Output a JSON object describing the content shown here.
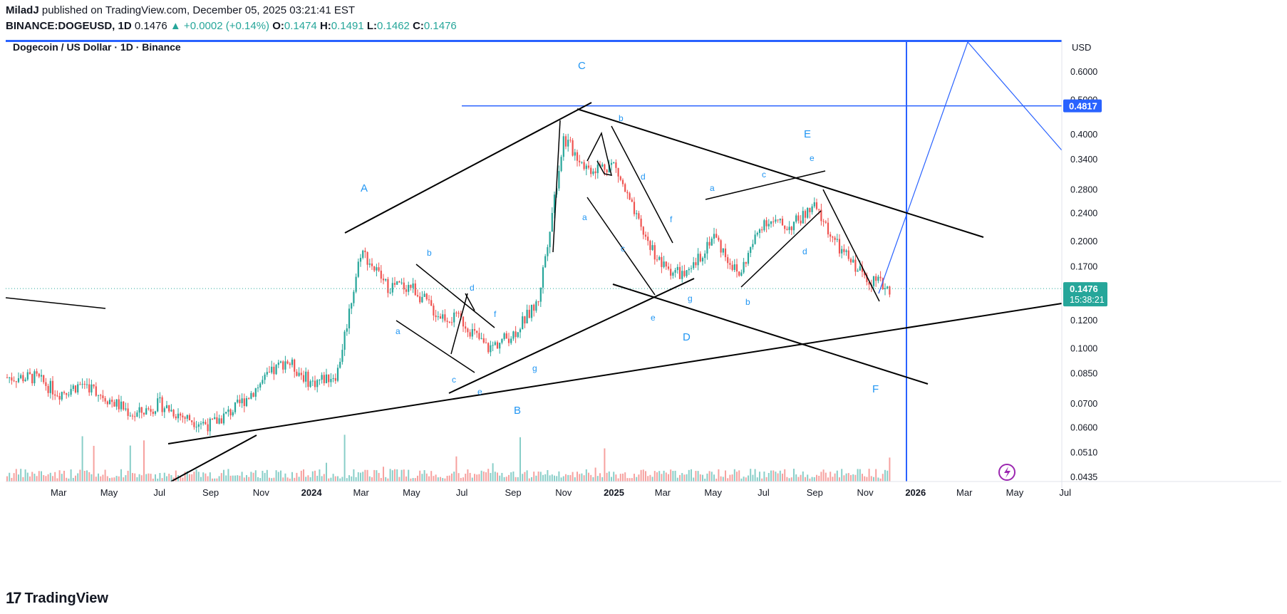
{
  "header": {
    "author": "MiladJ",
    "published_text": "published on TradingView.com, December 05, 2025 03:21:41 EST",
    "symbol": "BINANCE:DOGEUSD, 1D",
    "last": "0.1476",
    "change": "▲ +0.0002 (+0.14%)",
    "o_label": "O:",
    "o": "0.1474",
    "h_label": "H:",
    "h": "0.1491",
    "l_label": "L:",
    "l": "0.1462",
    "c_label": "C:",
    "c": "0.1476"
  },
  "legend": {
    "title": "Dogecoin / US Dollar · 1D · Binance"
  },
  "price_axis": {
    "currency": "USD",
    "ticks": [
      "0.6000",
      "0.5000",
      "0.4000",
      "0.3400",
      "0.2800",
      "0.2400",
      "0.2000",
      "0.1700",
      "0.1200",
      "0.1000",
      "0.0850",
      "0.0700",
      "0.0600",
      "0.0510",
      "0.0435"
    ],
    "tag_level": "0.4817",
    "tag_last": "0.1476",
    "tag_timer": "15:38:21"
  },
  "time_axis": {
    "ticks": [
      "Mar",
      "May",
      "Jul",
      "Sep",
      "Nov",
      "2024",
      "Mar",
      "May",
      "Jul",
      "Sep",
      "Nov",
      "2025",
      "Mar",
      "May",
      "Jul",
      "Sep",
      "Nov",
      "2026",
      "Mar",
      "May",
      "Jul"
    ]
  },
  "colors": {
    "up": "#26a69a",
    "down": "#ef5350",
    "annotation": "#2962ff",
    "wave_label": "#2196f3",
    "trendline": "#000000"
  },
  "wave_labels": [
    "A",
    "B",
    "C",
    "D",
    "E",
    "F",
    "a",
    "b",
    "c",
    "d",
    "e",
    "f",
    "g"
  ],
  "chart_data": {
    "type": "candlestick",
    "title": "Dogecoin / US Dollar · 1D · Binance",
    "ylabel": "USD",
    "y_scale": "log",
    "ylim": [
      0.0435,
      0.6
    ],
    "x_range": [
      "2023-02",
      "2026-07"
    ],
    "close_series_monthly": [
      {
        "t": "2023-02",
        "v": 0.083
      },
      {
        "t": "2023-03",
        "v": 0.075
      },
      {
        "t": "2023-04",
        "v": 0.08
      },
      {
        "t": "2023-05",
        "v": 0.072
      },
      {
        "t": "2023-06",
        "v": 0.065
      },
      {
        "t": "2023-07",
        "v": 0.07
      },
      {
        "t": "2023-08",
        "v": 0.064
      },
      {
        "t": "2023-09",
        "v": 0.061
      },
      {
        "t": "2023-10",
        "v": 0.068
      },
      {
        "t": "2023-11",
        "v": 0.08
      },
      {
        "t": "2023-12",
        "v": 0.093
      },
      {
        "t": "2024-01",
        "v": 0.08
      },
      {
        "t": "2024-02",
        "v": 0.085
      },
      {
        "t": "2024-03",
        "v": 0.19
      },
      {
        "t": "2024-04",
        "v": 0.15
      },
      {
        "t": "2024-05",
        "v": 0.15
      },
      {
        "t": "2024-06",
        "v": 0.125
      },
      {
        "t": "2024-07",
        "v": 0.12
      },
      {
        "t": "2024-08",
        "v": 0.1
      },
      {
        "t": "2024-09",
        "v": 0.11
      },
      {
        "t": "2024-10",
        "v": 0.135
      },
      {
        "t": "2024-11",
        "v": 0.39
      },
      {
        "t": "2024-12",
        "v": 0.32
      },
      {
        "t": "2025-01",
        "v": 0.33
      },
      {
        "t": "2025-02",
        "v": 0.22
      },
      {
        "t": "2025-03",
        "v": 0.17
      },
      {
        "t": "2025-04",
        "v": 0.16
      },
      {
        "t": "2025-05",
        "v": 0.21
      },
      {
        "t": "2025-06",
        "v": 0.16
      },
      {
        "t": "2025-07",
        "v": 0.23
      },
      {
        "t": "2025-08",
        "v": 0.22
      },
      {
        "t": "2025-09",
        "v": 0.25
      },
      {
        "t": "2025-10",
        "v": 0.19
      },
      {
        "t": "2025-11",
        "v": 0.16
      },
      {
        "t": "2025-12",
        "v": 0.1476
      }
    ],
    "horizontal_level": 0.4817,
    "last_price": 0.1476,
    "projection": [
      {
        "t": "2025-12",
        "v": 0.1476
      },
      {
        "t": "2026-04",
        "v": 0.58
      },
      {
        "t": "2026-07",
        "v": 0.32
      }
    ]
  }
}
